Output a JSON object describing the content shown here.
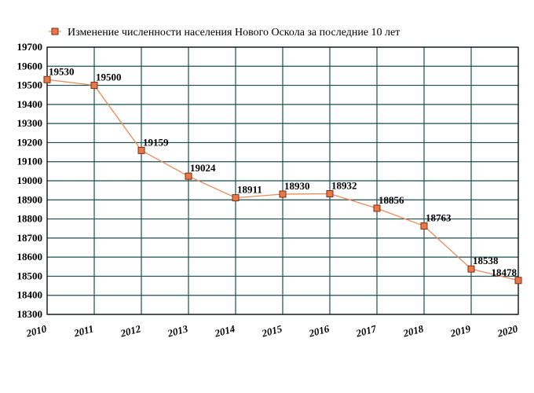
{
  "chart_data": {
    "type": "line",
    "title": "",
    "xlabel": "",
    "ylabel": "",
    "ylim": [
      18300,
      19700
    ],
    "y_ticks": [
      19700,
      19600,
      19500,
      19400,
      19300,
      19200,
      19100,
      19000,
      18900,
      18800,
      18700,
      18600,
      18500,
      18400,
      18300
    ],
    "categories": [
      "2010",
      "2011",
      "2012",
      "2013",
      "2014",
      "2015",
      "2016",
      "2017",
      "2018",
      "2019",
      "2020"
    ],
    "series": [
      {
        "name": "Изменение численности населения Нового Оскола за последние 10 лет",
        "values": [
          19530,
          19500,
          19159,
          19024,
          18911,
          18930,
          18932,
          18856,
          18763,
          18538,
          18478
        ],
        "labels": [
          "19530",
          "19500",
          "19159",
          "19024",
          "18911",
          "18930",
          "18932",
          "18856",
          "18763",
          "18538",
          "18478"
        ]
      }
    ],
    "legend": "top-left",
    "grid": true,
    "colors": {
      "grid": "#1b4f4f",
      "line": "#e88a5a",
      "marker_fill": "#e8784a",
      "marker_stroke": "#7a2e10",
      "axis": "#000000"
    }
  }
}
